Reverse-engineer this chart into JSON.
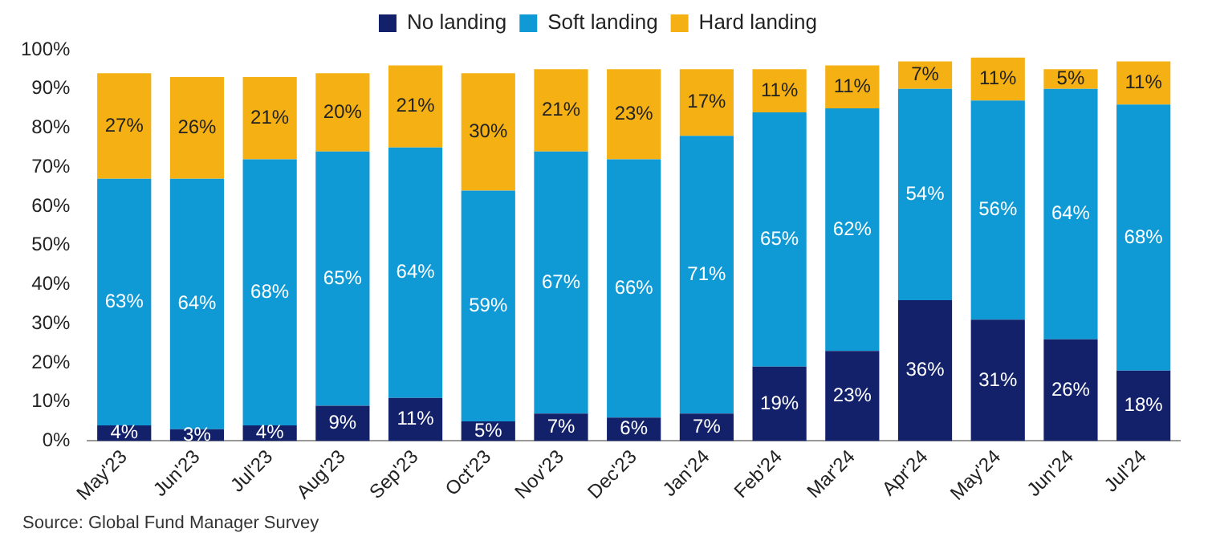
{
  "chart_data": {
    "type": "bar",
    "stacked": true,
    "categories": [
      "May'23",
      "Jun'23",
      "Jul'23",
      "Aug'23",
      "Sep'23",
      "Oct'23",
      "Nov'23",
      "Dec'23",
      "Jan'24",
      "Feb'24",
      "Mar'24",
      "Apr'24",
      "May'24",
      "Jun'24",
      "Jul'24"
    ],
    "series": [
      {
        "name": "No landing",
        "color": "#13216a",
        "values": [
          4,
          3,
          4,
          9,
          11,
          5,
          7,
          6,
          7,
          19,
          23,
          36,
          31,
          26,
          18
        ],
        "value_labels": [
          "4%",
          "3%",
          "4%",
          "9%",
          "11%",
          "5%",
          "7%",
          "6%",
          "7%",
          "19%",
          "23%",
          "36%",
          "31%",
          "26%",
          "18%"
        ]
      },
      {
        "name": "Soft landing",
        "color": "#0f9ad6",
        "values": [
          63,
          64,
          68,
          65,
          64,
          59,
          67,
          66,
          71,
          65,
          62,
          54,
          56,
          64,
          68
        ],
        "value_labels": [
          "63%",
          "64%",
          "68%",
          "65%",
          "64%",
          "59%",
          "67%",
          "66%",
          "71%",
          "65%",
          "62%",
          "54%",
          "56%",
          "64%",
          "68%"
        ]
      },
      {
        "name": "Hard landing",
        "color": "#f5b014",
        "values": [
          27,
          26,
          21,
          20,
          21,
          30,
          21,
          23,
          17,
          11,
          11,
          7,
          11,
          5,
          11
        ],
        "value_labels": [
          "27%",
          "26%",
          "21%",
          "20%",
          "21%",
          "30%",
          "21%",
          "23%",
          "17%",
          "11%",
          "11%",
          "7%",
          "11%",
          "5%",
          "11%"
        ]
      }
    ],
    "ylim": [
      0,
      100
    ],
    "yticks": [
      {
        "value": 0,
        "label": "0%"
      },
      {
        "value": 10,
        "label": "10%"
      },
      {
        "value": 20,
        "label": "20%"
      },
      {
        "value": 30,
        "label": "30%"
      },
      {
        "value": 40,
        "label": "40%"
      },
      {
        "value": 50,
        "label": "50%"
      },
      {
        "value": 60,
        "label": "60%"
      },
      {
        "value": 70,
        "label": "70%"
      },
      {
        "value": 80,
        "label": "80%"
      },
      {
        "value": 90,
        "label": "90%"
      },
      {
        "value": 100,
        "label": "100%"
      }
    ],
    "grid": false,
    "legend": "top",
    "annotations": [
      "Source: Global Fund Manager Survey"
    ]
  }
}
